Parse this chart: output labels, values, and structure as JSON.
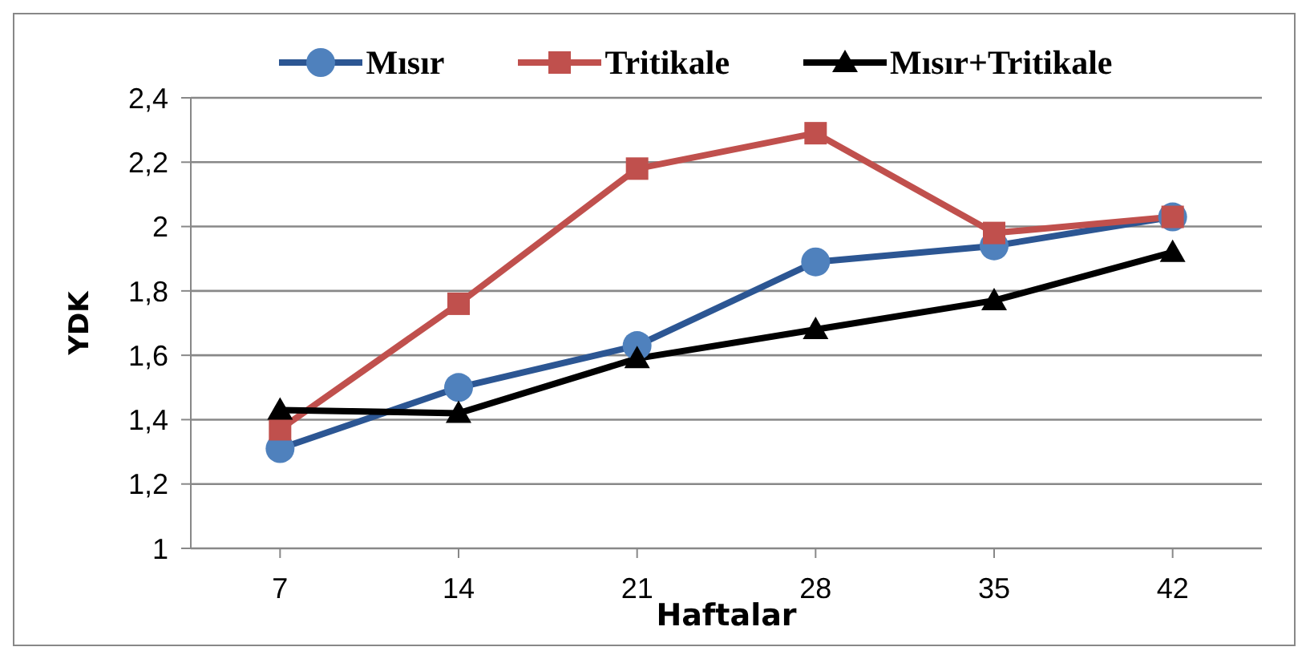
{
  "chart_data": {
    "type": "line",
    "categories": [
      "7",
      "14",
      "21",
      "28",
      "35",
      "42"
    ],
    "xlabel": "Haftalar",
    "ylabel": "YDK",
    "ylim": [
      1,
      2.4
    ],
    "yticks": [
      {
        "value": 1,
        "label": "1"
      },
      {
        "value": 1.2,
        "label": "1,2"
      },
      {
        "value": 1.4,
        "label": "1,4"
      },
      {
        "value": 1.6,
        "label": "1,6"
      },
      {
        "value": 1.8,
        "label": "1,8"
      },
      {
        "value": 2,
        "label": "2"
      },
      {
        "value": 2.2,
        "label": "2,2"
      },
      {
        "value": 2.4,
        "label": "2,4"
      }
    ],
    "grid": "y",
    "legend": "top",
    "series": [
      {
        "name": "Mısır",
        "color": "#2c5693",
        "marker": "circle",
        "values": [
          1.31,
          1.5,
          1.63,
          1.89,
          1.94,
          2.03
        ]
      },
      {
        "name": "Tritikale",
        "color": "#c0504d",
        "marker": "square",
        "values": [
          1.37,
          1.76,
          2.18,
          2.29,
          1.98,
          2.03
        ]
      },
      {
        "name": "Mısır+Tritikale",
        "color": "#000000",
        "marker": "triangle",
        "values": [
          1.43,
          1.42,
          1.59,
          1.68,
          1.77,
          1.92
        ]
      }
    ]
  }
}
